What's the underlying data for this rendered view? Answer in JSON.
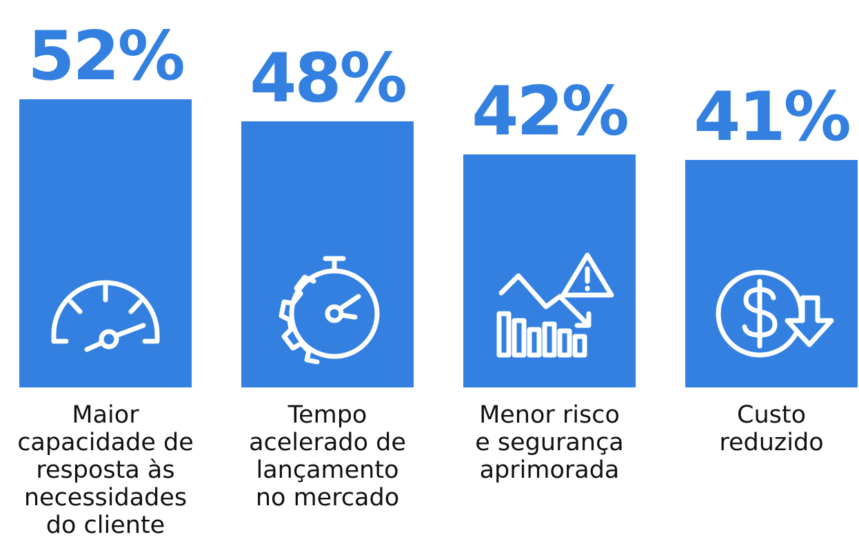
{
  "chart_data": {
    "type": "bar",
    "categories": [
      "Maior\ncapacidade de\nresposta às\nnecessidades\ndo cliente",
      "Tempo\nacelerado de\nlançamento\nno mercado",
      "Menor risco\ne segurança\naprimorada",
      "Custo\nreduzido"
    ],
    "values": [
      52,
      48,
      42,
      41
    ],
    "value_labels": [
      "52%",
      "48%",
      "42%",
      "41%"
    ],
    "color": "#3380e0"
  }
}
